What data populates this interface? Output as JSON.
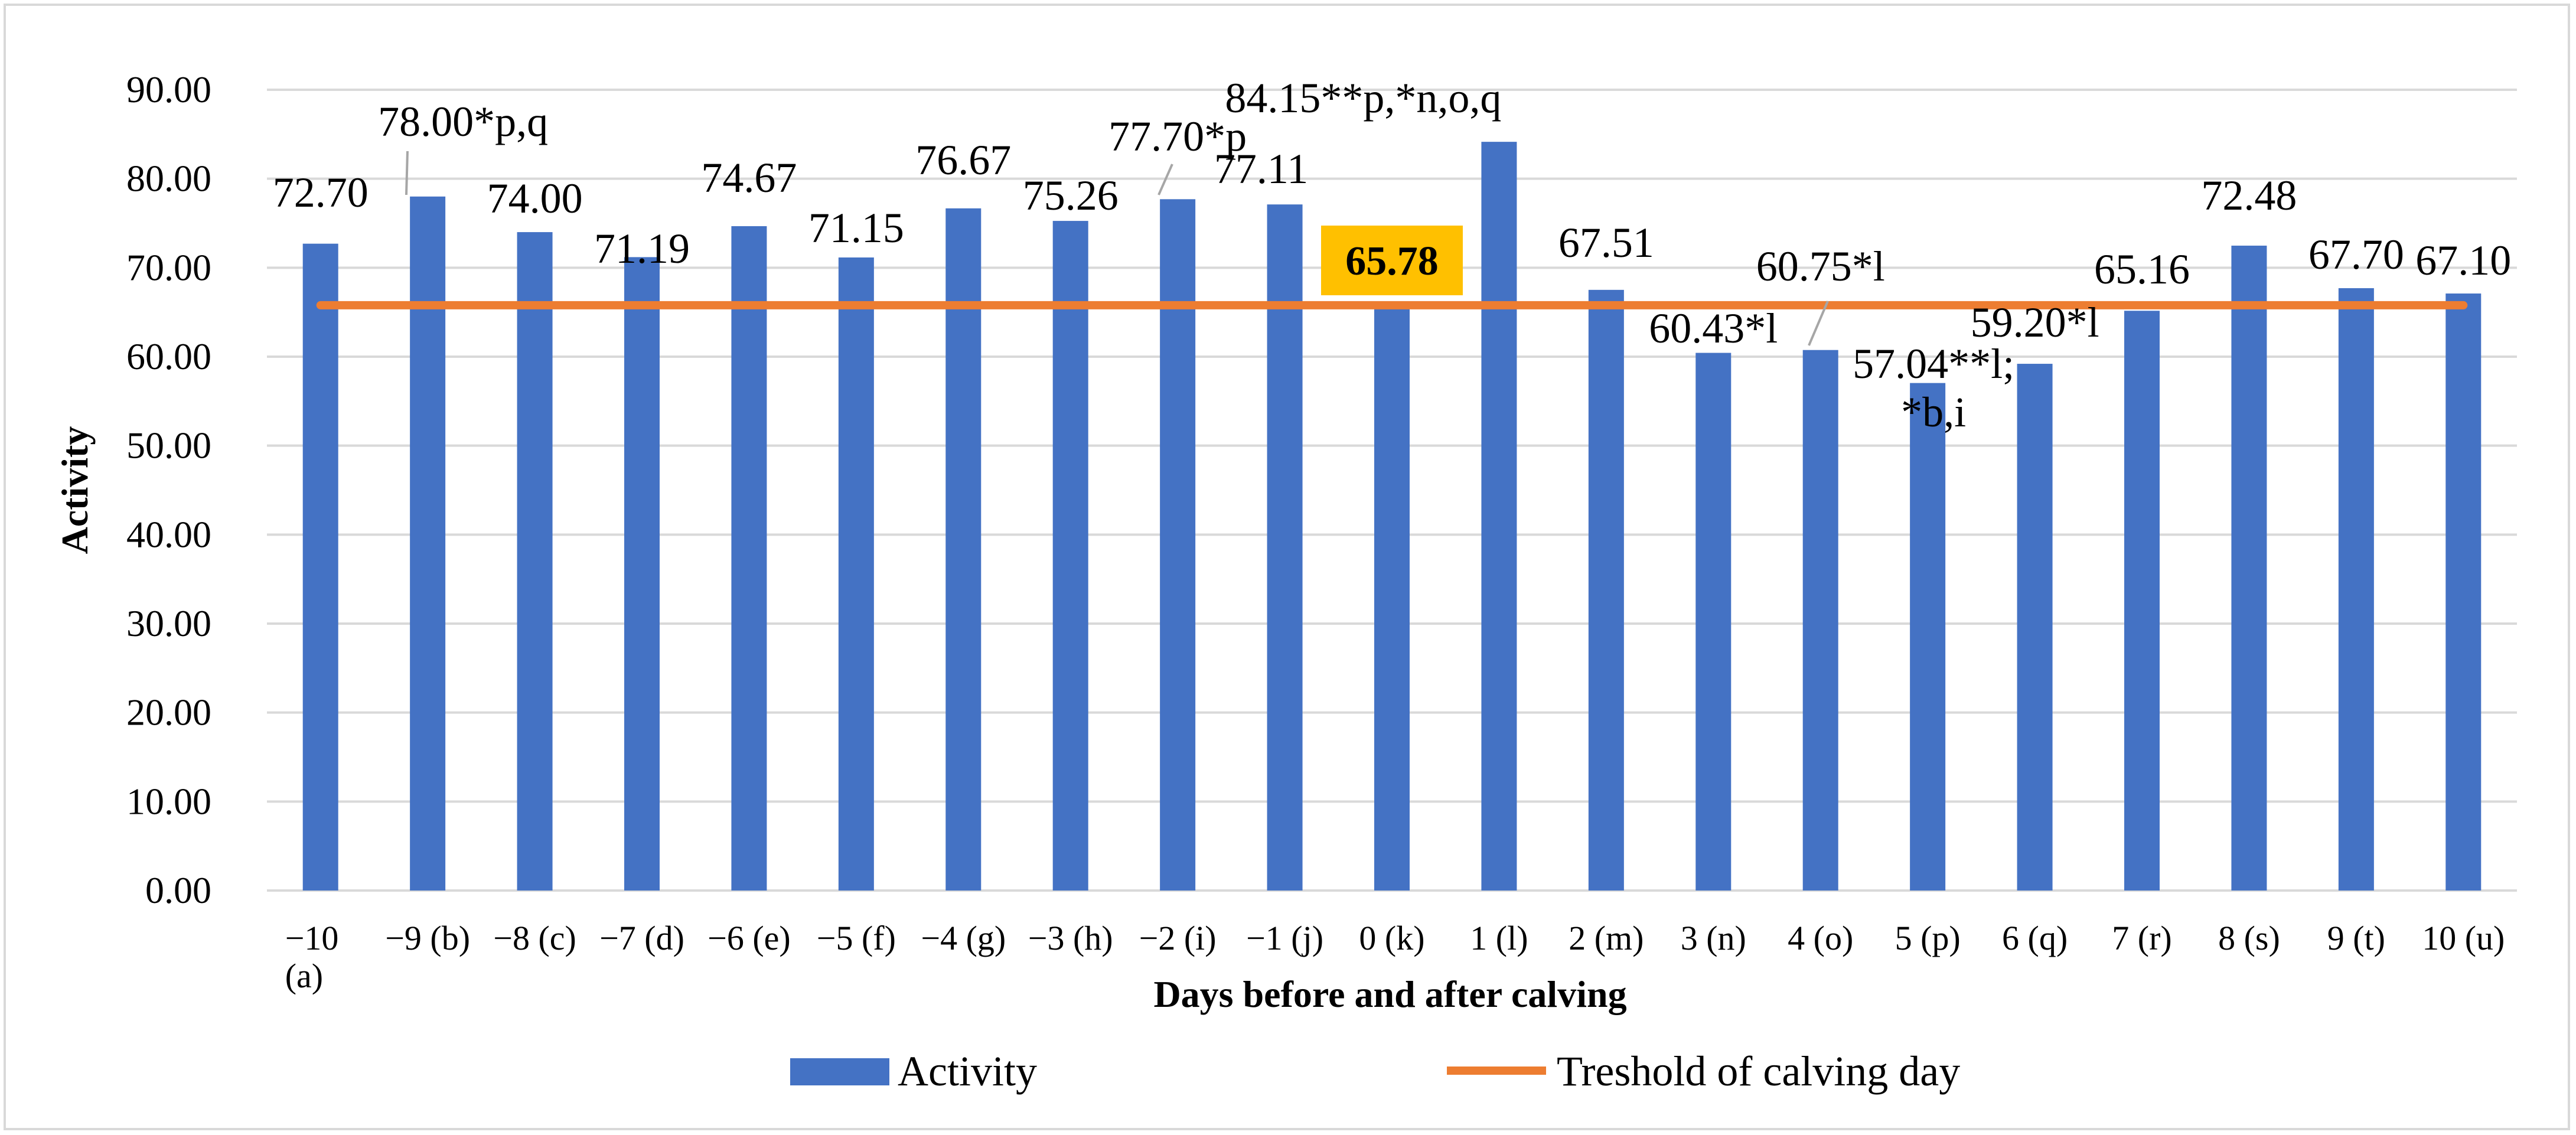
{
  "chart_data": {
    "type": "bar",
    "title": "",
    "xlabel": "Days before and after calving",
    "ylabel": "Activity",
    "ylim": [
      0,
      90
    ],
    "ytick_step": 10,
    "ytick_labels": [
      "0.00",
      "10.00",
      "20.00",
      "30.00",
      "40.00",
      "50.00",
      "60.00",
      "70.00",
      "80.00",
      "90.00"
    ],
    "grid": true,
    "legend_position": "bottom",
    "categories": [
      [
        "−10",
        "(a)"
      ],
      [
        "−9 (b)"
      ],
      [
        "−8 (c)"
      ],
      [
        "−7 (d)"
      ],
      [
        "−6 (e)"
      ],
      [
        "−5 (f)"
      ],
      [
        "−4 (g)"
      ],
      [
        "−3 (h)"
      ],
      [
        "−2 (i)"
      ],
      [
        "−1 (j)"
      ],
      [
        "0 (k)"
      ],
      [
        "1 (l)"
      ],
      [
        "2 (m)"
      ],
      [
        "3 (n)"
      ],
      [
        "4 (o)"
      ],
      [
        "5 (p)"
      ],
      [
        "6 (q)"
      ],
      [
        "7 (r)"
      ],
      [
        "8 (s)"
      ],
      [
        "9 (t)"
      ],
      [
        "10 (u)"
      ]
    ],
    "series": [
      {
        "name": "Activity",
        "type": "bar",
        "color": "#4472c4",
        "values": [
          72.7,
          78.0,
          74.0,
          71.19,
          74.67,
          71.15,
          76.67,
          75.26,
          77.7,
          77.11,
          65.78,
          84.15,
          67.51,
          60.43,
          60.75,
          57.04,
          59.2,
          65.16,
          72.48,
          67.7,
          67.1
        ],
        "data_labels": [
          [
            "72.70"
          ],
          [
            "78.00*p,q"
          ],
          [
            "74.00"
          ],
          [
            "71.19"
          ],
          [
            "74.67"
          ],
          [
            "71.15"
          ],
          [
            "76.67"
          ],
          [
            "75.26"
          ],
          [
            "77.70*p"
          ],
          [
            "77.11"
          ],
          [
            ""
          ],
          [
            "84.15**p,*n,o,q"
          ],
          [
            "67.51"
          ],
          [
            "60.43*l"
          ],
          [
            "60.75*l"
          ],
          [
            "57.04**l;",
            "*b,i"
          ],
          [
            "59.20*l"
          ],
          [
            "65.16"
          ],
          [
            "72.48"
          ],
          [
            "67.70"
          ],
          [
            "67.10"
          ]
        ]
      },
      {
        "name": "Treshold of calving day",
        "type": "line",
        "color": "#ed7d31",
        "value": 65.78
      }
    ],
    "annotations": [
      {
        "text": "65.78",
        "value": 65.78,
        "category_index": 10,
        "highlight_color": "#ffc000"
      }
    ]
  }
}
